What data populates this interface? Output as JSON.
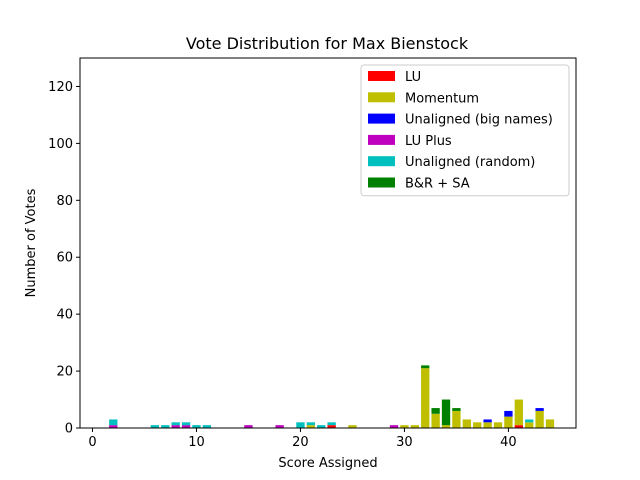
{
  "chart_data": {
    "type": "bar",
    "stacked": true,
    "title": "Vote Distribution for Max Bienstock",
    "xlabel": "Score Assigned",
    "ylabel": "Number of Votes",
    "xlim": [
      -1.2,
      46.5
    ],
    "ylim": [
      0,
      130
    ],
    "xticks": [
      0,
      10,
      20,
      30,
      40
    ],
    "yticks": [
      0,
      20,
      40,
      60,
      80,
      100,
      120
    ],
    "grid": false,
    "legend_position": "top-right",
    "x": [
      2,
      6,
      7,
      8,
      9,
      10,
      11,
      15,
      18,
      20,
      21,
      22,
      23,
      25,
      29,
      30,
      31,
      32,
      33,
      34,
      35,
      36,
      37,
      38,
      39,
      40,
      41,
      42,
      43,
      44
    ],
    "series": [
      {
        "name": "LU",
        "color": "#ff0000",
        "values": [
          0,
          0,
          0,
          0,
          0,
          0,
          0,
          0,
          0,
          0,
          0,
          0,
          1,
          0,
          0,
          0,
          0,
          0,
          0,
          0,
          0,
          0,
          0,
          0,
          0,
          0,
          1,
          0,
          0,
          0
        ]
      },
      {
        "name": "Momentum",
        "color": "#bfbf00",
        "values": [
          0,
          0,
          0,
          0,
          0,
          0,
          0,
          0,
          0,
          0,
          1,
          0,
          0,
          1,
          0,
          1,
          1,
          21,
          5,
          1,
          6,
          3,
          2,
          2,
          2,
          4,
          9,
          2,
          6,
          3
        ]
      },
      {
        "name": "Unaligned (big names)",
        "color": "#0000ff",
        "values": [
          0,
          0,
          0,
          0,
          0,
          0,
          0,
          0,
          0,
          0,
          0,
          0,
          0,
          0,
          0,
          0,
          0,
          0,
          0,
          0,
          0,
          0,
          0,
          1,
          0,
          2,
          0,
          0,
          1,
          0
        ]
      },
      {
        "name": "LU Plus",
        "color": "#bf00bf",
        "values": [
          1,
          0,
          0,
          1,
          1,
          0,
          0,
          1,
          1,
          0,
          0,
          0,
          0,
          0,
          1,
          0,
          0,
          0,
          0,
          0,
          0,
          0,
          0,
          0,
          0,
          0,
          0,
          0,
          0,
          0
        ]
      },
      {
        "name": "Unaligned (random)",
        "color": "#00bfbf",
        "values": [
          2,
          1,
          1,
          1,
          1,
          1,
          1,
          0,
          0,
          2,
          1,
          1,
          1,
          0,
          0,
          0,
          0,
          0,
          0,
          0,
          0,
          0,
          0,
          0,
          0,
          0,
          0,
          1,
          0,
          0
        ]
      },
      {
        "name": "B&R + SA",
        "color": "#008000",
        "values": [
          0,
          0,
          0,
          0,
          0,
          0,
          0,
          0,
          0,
          0,
          0,
          0,
          0,
          0,
          0,
          0,
          0,
          1,
          2,
          9,
          1,
          0,
          0,
          0,
          0,
          0,
          0,
          0,
          0,
          0
        ]
      }
    ]
  }
}
